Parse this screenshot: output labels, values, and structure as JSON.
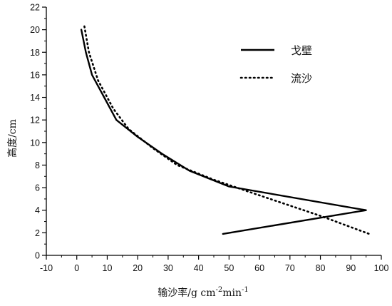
{
  "chart_data": {
    "type": "line",
    "title": "",
    "xlabel": "输沙率/g cm",
    "xlabel_sup1": "-2",
    "xlabel_mid": "min",
    "xlabel_sup2": "-1",
    "ylabel": "高度/cm",
    "xlim": [
      -10,
      100
    ],
    "ylim": [
      0,
      22
    ],
    "x_ticks": [
      "-10",
      "0",
      "10",
      "20",
      "30",
      "40",
      "50",
      "60",
      "70",
      "80",
      "90",
      "100"
    ],
    "y_ticks": [
      "0",
      "2",
      "4",
      "6",
      "8",
      "10",
      "12",
      "14",
      "16",
      "18",
      "20",
      "22"
    ],
    "legend_position": "top-right",
    "grid": false,
    "series": [
      {
        "name": "戈壁",
        "style": "solid",
        "color": "#000000",
        "points": [
          [
            1.5,
            20
          ],
          [
            3,
            18
          ],
          [
            5,
            16
          ],
          [
            9,
            14
          ],
          [
            13,
            12
          ],
          [
            20,
            10.5
          ],
          [
            28,
            9
          ],
          [
            37,
            7.5
          ],
          [
            50,
            6.1
          ],
          [
            95,
            4
          ],
          [
            48,
            1.9
          ]
        ]
      },
      {
        "name": "流沙",
        "style": "dotted",
        "color": "#000000",
        "points": [
          [
            2.5,
            20.3
          ],
          [
            4,
            18
          ],
          [
            7,
            15.5
          ],
          [
            12,
            13
          ],
          [
            17,
            11.2
          ],
          [
            25,
            9.5
          ],
          [
            33,
            8
          ],
          [
            45,
            6.7
          ],
          [
            58,
            5.5
          ],
          [
            80,
            3.5
          ],
          [
            96,
            1.9
          ]
        ]
      }
    ]
  }
}
